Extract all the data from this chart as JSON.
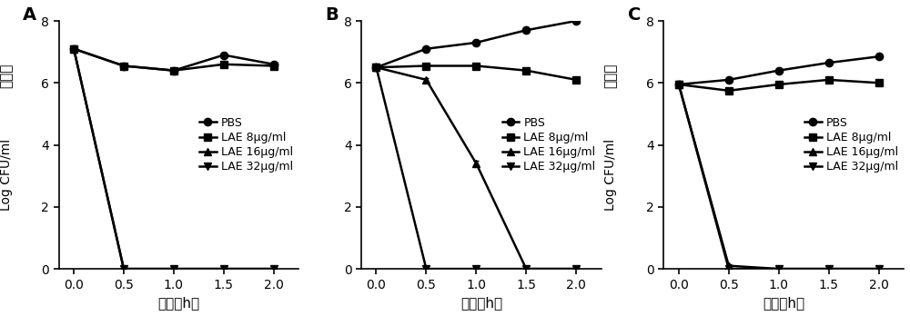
{
  "panels": [
    "A",
    "B",
    "C"
  ],
  "x": [
    0.0,
    0.5,
    1.0,
    1.5,
    2.0
  ],
  "panel_A": {
    "PBS": [
      7.1,
      6.55,
      6.4,
      6.9,
      6.6
    ],
    "LAE8": [
      7.1,
      6.55,
      6.4,
      6.6,
      6.55
    ],
    "LAE16": [
      7.1,
      0.0,
      0.0,
      0.0,
      0.0
    ],
    "LAE32": [
      7.1,
      0.0,
      0.0,
      0.0,
      0.0
    ]
  },
  "panel_B": {
    "PBS": [
      6.5,
      7.1,
      7.3,
      7.7,
      8.0
    ],
    "LAE8": [
      6.5,
      6.55,
      6.55,
      6.4,
      6.1
    ],
    "LAE16": [
      6.5,
      6.1,
      3.4,
      0.0,
      0.0
    ],
    "LAE32": [
      6.5,
      0.0,
      0.0,
      0.0,
      0.0
    ]
  },
  "panel_C": {
    "PBS": [
      5.95,
      6.1,
      6.4,
      6.65,
      6.85
    ],
    "LAE8": [
      5.95,
      5.75,
      5.95,
      6.1,
      6.0
    ],
    "LAE16": [
      5.95,
      0.1,
      0.0,
      0.0,
      0.0
    ],
    "LAE32": [
      5.95,
      0.0,
      0.0,
      0.0,
      0.0
    ]
  },
  "panel_A_err": {
    "PBS": [
      0.05,
      0.05,
      0.05,
      0.07,
      0.05
    ],
    "LAE8": [
      0.05,
      0.05,
      0.05,
      0.05,
      0.05
    ],
    "LAE16": [
      0.05,
      0.0,
      0.0,
      0.0,
      0.0
    ],
    "LAE32": [
      0.05,
      0.0,
      0.0,
      0.0,
      0.0
    ]
  },
  "panel_B_err": {
    "PBS": [
      0.05,
      0.05,
      0.05,
      0.07,
      0.05
    ],
    "LAE8": [
      0.05,
      0.05,
      0.05,
      0.05,
      0.05
    ],
    "LAE16": [
      0.05,
      0.05,
      0.1,
      0.0,
      0.0
    ],
    "LAE32": [
      0.05,
      0.0,
      0.0,
      0.0,
      0.0
    ]
  },
  "panel_C_err": {
    "PBS": [
      0.05,
      0.05,
      0.07,
      0.07,
      0.05
    ],
    "LAE8": [
      0.05,
      0.07,
      0.07,
      0.07,
      0.05
    ],
    "LAE16": [
      0.05,
      0.05,
      0.0,
      0.0,
      0.0
    ],
    "LAE32": [
      0.05,
      0.0,
      0.0,
      0.0,
      0.0
    ]
  },
  "legend_labels": [
    "PBS",
    "LAE 8μg/ml",
    "LAE 16μg/ml",
    "LAE 32μg/ml"
  ],
  "markers": [
    "o",
    "s",
    "^",
    "v"
  ],
  "xlabel": "时间（h）",
  "ylabel_chinese": "活菌量",
  "ylabel_english": "Log CFU/ml",
  "ylim": [
    0,
    8
  ],
  "yticks": [
    0,
    2,
    4,
    6,
    8
  ],
  "xticks": [
    0.0,
    0.5,
    1.0,
    1.5,
    2.0
  ],
  "linewidth": 1.8,
  "markersize": 6,
  "color": "#000000",
  "background": "#ffffff",
  "panel_label_fontsize": 14,
  "label_fontsize": 11,
  "tick_fontsize": 10,
  "legend_fontsize": 9,
  "chinese_fontsize": 11
}
